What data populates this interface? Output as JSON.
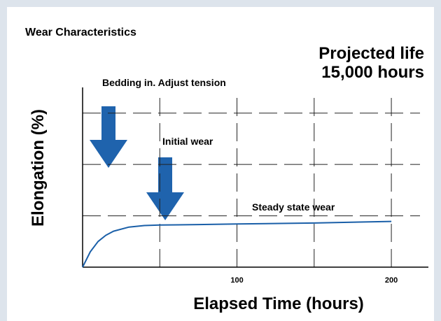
{
  "chart_data": {
    "type": "line",
    "title": "Wear Characteristics",
    "projection": [
      "Projected life",
      "15,000 hours"
    ],
    "annotations": [
      "Bedding in. Adjust tension",
      "Initial wear",
      "Steady state wear"
    ],
    "x_label": "Elapsed Time (hours)",
    "y_label": "Elongation (%)",
    "x": [
      0,
      5,
      10,
      15,
      20,
      30,
      40,
      50,
      75,
      100,
      150,
      200
    ],
    "values": [
      0,
      0.3,
      0.5,
      0.62,
      0.7,
      0.78,
      0.81,
      0.82,
      0.83,
      0.84,
      0.86,
      0.89
    ],
    "color": "#1a5fa8",
    "xlim": [
      0,
      224
    ],
    "ylim": [
      0,
      3.5
    ],
    "xticks": [
      {
        "value": 50,
        "label": null
      },
      100,
      {
        "value": 150,
        "label": null
      },
      200
    ],
    "yticks": [
      1,
      2,
      3
    ],
    "grid": true
  }
}
